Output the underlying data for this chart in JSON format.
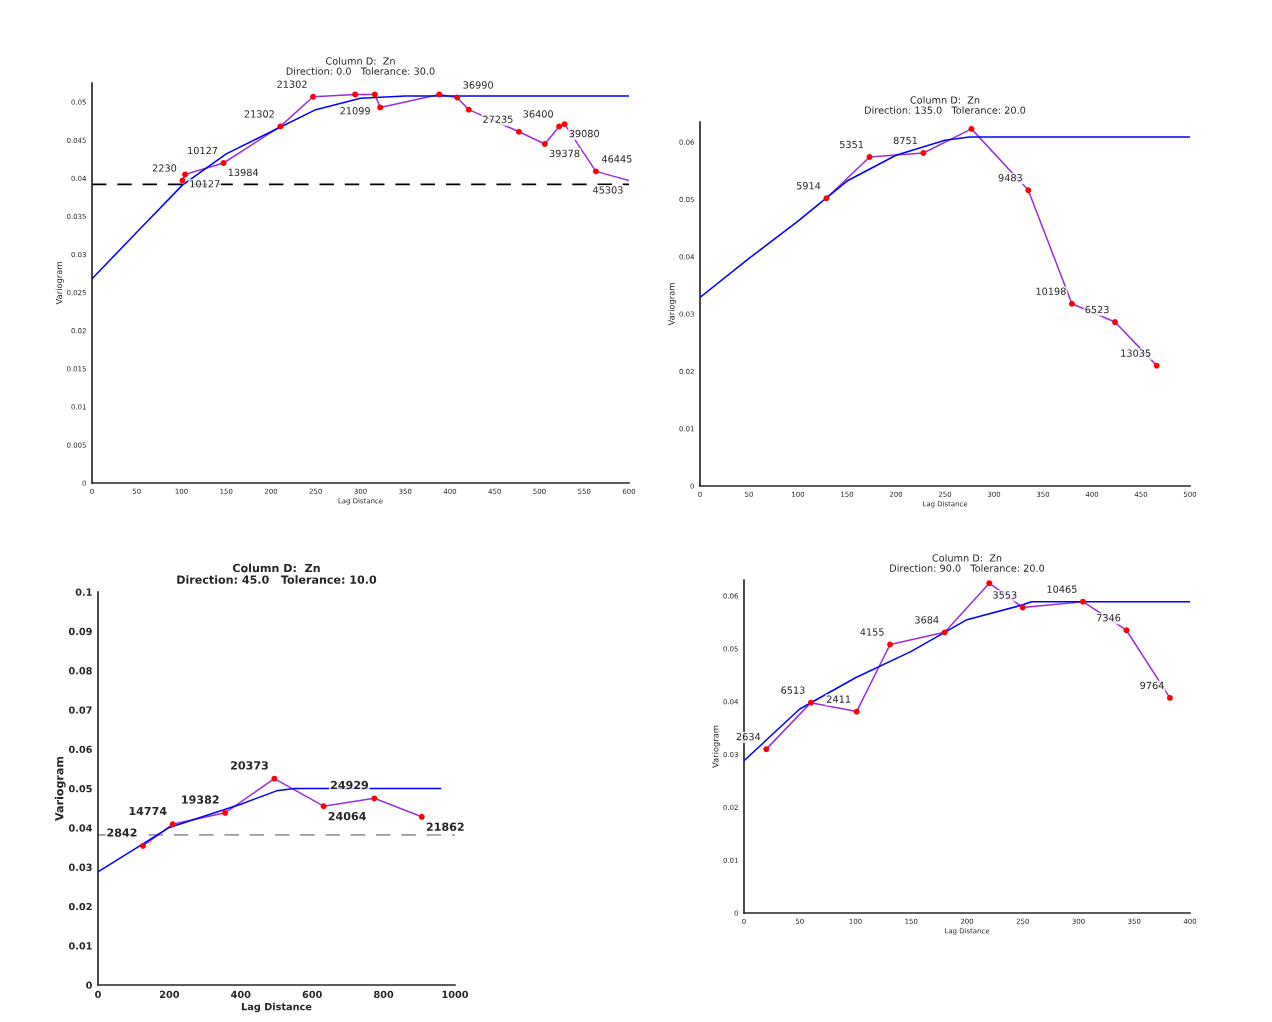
{
  "chart_data": [
    {
      "type": "line",
      "title": "Column D:  Zn\nDirection: 0.0   Tolerance: 30.0",
      "xlabel": "Lag Distance",
      "ylabel": "Variogram",
      "xlim": [
        0,
        600
      ],
      "xticks": [
        0,
        50,
        100,
        150,
        200,
        250,
        300,
        350,
        400,
        450,
        500,
        550,
        600
      ],
      "ylim": [
        0,
        0.0525
      ],
      "yticks": [
        0,
        0.005,
        0.01,
        0.015,
        0.02,
        0.025,
        0.03,
        0.035,
        0.04,
        0.045,
        0.05
      ],
      "series": [
        {
          "type": "line",
          "color": "#9b30d9",
          "marker": "none",
          "x": [
            101,
            104,
            147,
            210.5,
            247,
            294,
            316,
            322,
            388,
            408,
            421,
            477,
            506,
            522,
            528,
            563,
            600
          ],
          "values": [
            0.0397,
            0.0405,
            0.042,
            0.0468,
            0.0507,
            0.051,
            0.051,
            0.0493,
            0.051,
            0.0506,
            0.049,
            0.0461,
            0.0445,
            0.0468,
            0.0471,
            0.0409,
            0.0397
          ]
        },
        {
          "type": "scatter",
          "color": "#ff0000",
          "marker": "circle",
          "x": [
            101,
            104,
            147,
            210.5,
            247,
            294,
            316,
            322,
            388,
            408,
            421,
            477,
            506,
            522,
            528,
            563
          ],
          "values": [
            0.0397,
            0.0405,
            0.042,
            0.0468,
            0.0507,
            0.051,
            0.051,
            0.0493,
            0.051,
            0.0506,
            0.049,
            0.0461,
            0.0445,
            0.0468,
            0.0471,
            0.0409
          ]
        },
        {
          "type": "line",
          "color": "#0000ff",
          "marker": "none",
          "x": [
            0,
            50,
            101,
            150,
            200,
            250,
            300,
            350,
            600
          ],
          "values": [
            0.0268,
            0.0329,
            0.0391,
            0.0432,
            0.0461,
            0.049,
            0.0505,
            0.0508,
            0.0508
          ]
        }
      ],
      "ref_lines": [
        {
          "axis": "y",
          "value": 0.0392,
          "color": "#000000",
          "line_style": "dashed"
        }
      ],
      "annotations": [
        {
          "text": "2230",
          "x": 101,
          "y": 0.0397
        },
        {
          "text": "10127",
          "x": 104,
          "y": 0.0405
        },
        {
          "text": "10127",
          "x": 147,
          "y": 0.042
        },
        {
          "text": "13984",
          "x": 147,
          "y": 0.042
        },
        {
          "text": "21302",
          "x": 210.5,
          "y": 0.0468
        },
        {
          "text": "21302",
          "x": 247,
          "y": 0.0507
        },
        {
          "text": "21099",
          "x": 294,
          "y": 0.051
        },
        {
          "text": "36990",
          "x": 408,
          "y": 0.0506
        },
        {
          "text": "27235",
          "x": 477,
          "y": 0.0461
        },
        {
          "text": "39378",
          "x": 506,
          "y": 0.0445
        },
        {
          "text": "36400",
          "x": 522,
          "y": 0.0468
        },
        {
          "text": "39080",
          "x": 528,
          "y": 0.0471
        },
        {
          "text": "46445",
          "x": 563,
          "y": 0.0409
        },
        {
          "text": "45303",
          "x": 600,
          "y": 0.0397
        }
      ]
    },
    {
      "type": "line",
      "title": "Column D:  Zn\nDirection: 135.0   Tolerance: 20.0",
      "xlabel": "Lag Distance",
      "ylabel": "Variogram",
      "xlim": [
        0,
        500
      ],
      "xticks": [
        0,
        50,
        100,
        150,
        200,
        250,
        300,
        350,
        400,
        450,
        500
      ],
      "ylim": [
        0,
        0.0635
      ],
      "yticks": [
        0,
        0.01,
        0.02,
        0.03,
        0.04,
        0.05,
        0.06
      ],
      "series": [
        {
          "type": "line",
          "color": "#9b30d9",
          "marker": "none",
          "x": [
            129,
            173,
            228,
            277,
            335,
            379.5,
            423.5,
            466
          ],
          "values": [
            0.0502,
            0.0574,
            0.0581,
            0.0623,
            0.0516,
            0.0318,
            0.0286,
            0.021
          ]
        },
        {
          "type": "scatter",
          "color": "#ff0000",
          "marker": "circle",
          "x": [
            129,
            173,
            228,
            277,
            335,
            379.5,
            423.5,
            466
          ],
          "values": [
            0.0502,
            0.0574,
            0.0581,
            0.0623,
            0.0516,
            0.0318,
            0.0286,
            0.021
          ]
        },
        {
          "type": "line",
          "color": "#0000ff",
          "marker": "none",
          "x": [
            0,
            50,
            100,
            150,
            200,
            250,
            275,
            500
          ],
          "values": [
            0.0329,
            0.0397,
            0.0462,
            0.0532,
            0.0577,
            0.0603,
            0.0609,
            0.0609
          ]
        }
      ],
      "annotations": [
        {
          "text": "5914",
          "x": 129,
          "y": 0.0502
        },
        {
          "text": "5351",
          "x": 173,
          "y": 0.0574
        },
        {
          "text": "8751",
          "x": 228,
          "y": 0.0581
        },
        {
          "text": "9483",
          "x": 335,
          "y": 0.0516
        },
        {
          "text": "10198",
          "x": 379.5,
          "y": 0.0318
        },
        {
          "text": "6523",
          "x": 423.5,
          "y": 0.0286
        },
        {
          "text": "13035",
          "x": 466,
          "y": 0.021
        }
      ]
    },
    {
      "type": "line",
      "title": "Column D:  Zn\nDirection: 45.0   Tolerance: 10.0",
      "xlabel": "Lag Distance",
      "ylabel": "Variogram",
      "xlim": [
        0,
        1000
      ],
      "xticks": [
        0,
        200,
        400,
        600,
        800,
        1000
      ],
      "ylim": [
        0,
        0.1
      ],
      "yticks": [
        0,
        0.01,
        0.02,
        0.03,
        0.04,
        0.05,
        0.06,
        0.07,
        0.08,
        0.09,
        0.1
      ],
      "series": [
        {
          "type": "line",
          "color": "#9b30d9",
          "marker": "none",
          "x": [
            126,
            209,
            356,
            494,
            632,
            774,
            907
          ],
          "values": [
            0.0354,
            0.0409,
            0.0438,
            0.0525,
            0.0455,
            0.0475,
            0.0428
          ]
        },
        {
          "type": "scatter",
          "color": "#ff0000",
          "marker": "circle",
          "x": [
            126,
            209,
            356,
            494,
            632,
            774,
            907
          ],
          "values": [
            0.0354,
            0.0409,
            0.0438,
            0.0525,
            0.0455,
            0.0475,
            0.0428
          ]
        },
        {
          "type": "line",
          "color": "#0000ff",
          "marker": "none",
          "x": [
            0,
            200,
            400,
            500,
            550,
            960
          ],
          "values": [
            0.0288,
            0.0401,
            0.046,
            0.0494,
            0.05,
            0.05
          ]
        }
      ],
      "ref_lines": [
        {
          "axis": "y",
          "value": 0.0382,
          "color": "#999999",
          "line_style": "dashed"
        }
      ],
      "annotations": [
        {
          "text": "2842",
          "x": 126,
          "y": 0.0354
        },
        {
          "text": "14774",
          "x": 209,
          "y": 0.0409
        },
        {
          "text": "19382",
          "x": 356,
          "y": 0.0438
        },
        {
          "text": "20373",
          "x": 494,
          "y": 0.0525
        },
        {
          "text": "24064",
          "x": 632,
          "y": 0.0455
        },
        {
          "text": "24929",
          "x": 774,
          "y": 0.0475
        },
        {
          "text": "21862",
          "x": 907,
          "y": 0.0428
        }
      ]
    },
    {
      "type": "line",
      "title": "Column D:  Zn\nDirection: 90.0   Tolerance: 20.0",
      "xlabel": "Lag Distance",
      "ylabel": "Variogram",
      "xlim": [
        0,
        400
      ],
      "xticks": [
        0,
        50,
        100,
        150,
        200,
        250,
        300,
        350,
        400
      ],
      "ylim": [
        0,
        0.063
      ],
      "yticks": [
        0,
        0.01,
        0.02,
        0.03,
        0.04,
        0.05,
        0.06
      ],
      "series": [
        {
          "type": "line",
          "color": "#9b30d9",
          "marker": "none",
          "x": [
            20,
            60,
            101,
            131,
            180,
            220,
            250,
            304,
            343,
            382
          ],
          "values": [
            0.031,
            0.0398,
            0.0381,
            0.0508,
            0.0531,
            0.0624,
            0.0578,
            0.0589,
            0.0535,
            0.0407
          ]
        },
        {
          "type": "scatter",
          "color": "#ff0000",
          "marker": "circle",
          "x": [
            20,
            60,
            101,
            131,
            180,
            220,
            250,
            304,
            343,
            382
          ],
          "values": [
            0.031,
            0.0398,
            0.0381,
            0.0508,
            0.0531,
            0.0624,
            0.0578,
            0.0589,
            0.0535,
            0.0407
          ]
        },
        {
          "type": "line",
          "color": "#0000ff",
          "marker": "none",
          "x": [
            0,
            50,
            100,
            150,
            200,
            250,
            258,
            400
          ],
          "values": [
            0.0288,
            0.0386,
            0.0445,
            0.0495,
            0.0555,
            0.0583,
            0.0589,
            0.0589
          ]
        }
      ],
      "annotations": [
        {
          "text": "2634",
          "x": 20,
          "y": 0.031
        },
        {
          "text": "6513",
          "x": 60,
          "y": 0.0398
        },
        {
          "text": "2411",
          "x": 101,
          "y": 0.0381
        },
        {
          "text": "4155",
          "x": 131,
          "y": 0.0508
        },
        {
          "text": "3684",
          "x": 180,
          "y": 0.0531
        },
        {
          "text": "3553",
          "x": 250,
          "y": 0.0578
        },
        {
          "text": "10465",
          "x": 304,
          "y": 0.0589
        },
        {
          "text": "7346",
          "x": 343,
          "y": 0.0535
        },
        {
          "text": "9764",
          "x": 382,
          "y": 0.0407
        }
      ]
    }
  ]
}
